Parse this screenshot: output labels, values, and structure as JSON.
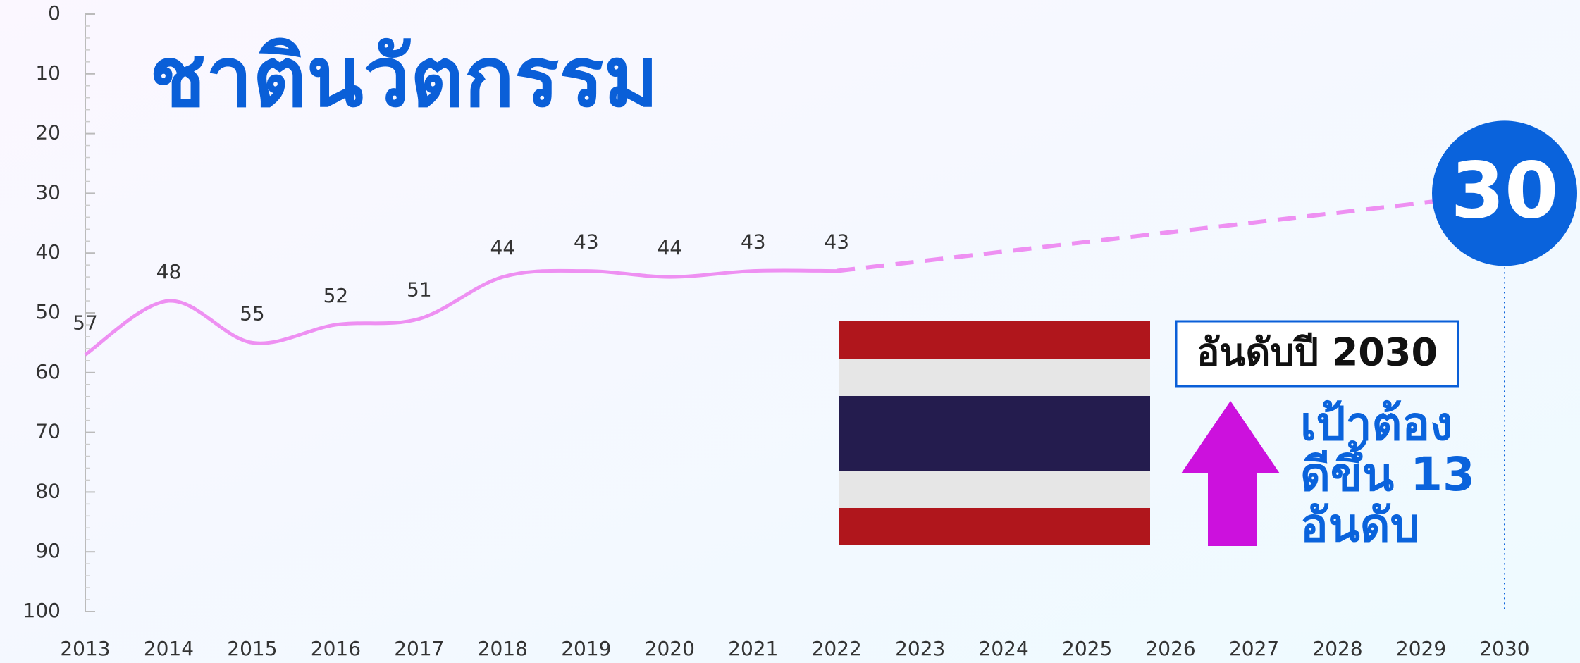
{
  "chart_data": {
    "type": "line",
    "title": "ชาตินวัตกรรม",
    "series": [
      {
        "color": "#ee90f2",
        "style": "solid",
        "x": [
          2013,
          2014,
          2015,
          2016,
          2017,
          2018,
          2019,
          2020,
          2021,
          2022
        ],
        "values": [
          57,
          48,
          55,
          52,
          51,
          44,
          43,
          44,
          43,
          43
        ]
      },
      {
        "color": "#ee90f2",
        "style": "dashed",
        "marker_color": "#0a63dc",
        "x": [
          2030
        ],
        "values": [
          30
        ]
      }
    ],
    "xlim": [
      2013,
      2030
    ],
    "xticks": [
      2013,
      2014,
      2015,
      2016,
      2017,
      2018,
      2019,
      2020,
      2021,
      2022,
      2023,
      2024,
      2025,
      2026,
      2027,
      2028,
      2029,
      2030
    ],
    "ylim": [
      0,
      100
    ],
    "y_inverted": true,
    "yticks": [
      0,
      10,
      20,
      30,
      40,
      50,
      60,
      70,
      80,
      90,
      100
    ],
    "annotations": {
      "box": "อันดับปี 2030",
      "target": [
        "เป้าต้อง",
        "ดีขึ้น 13",
        "อันดับ"
      ]
    }
  }
}
